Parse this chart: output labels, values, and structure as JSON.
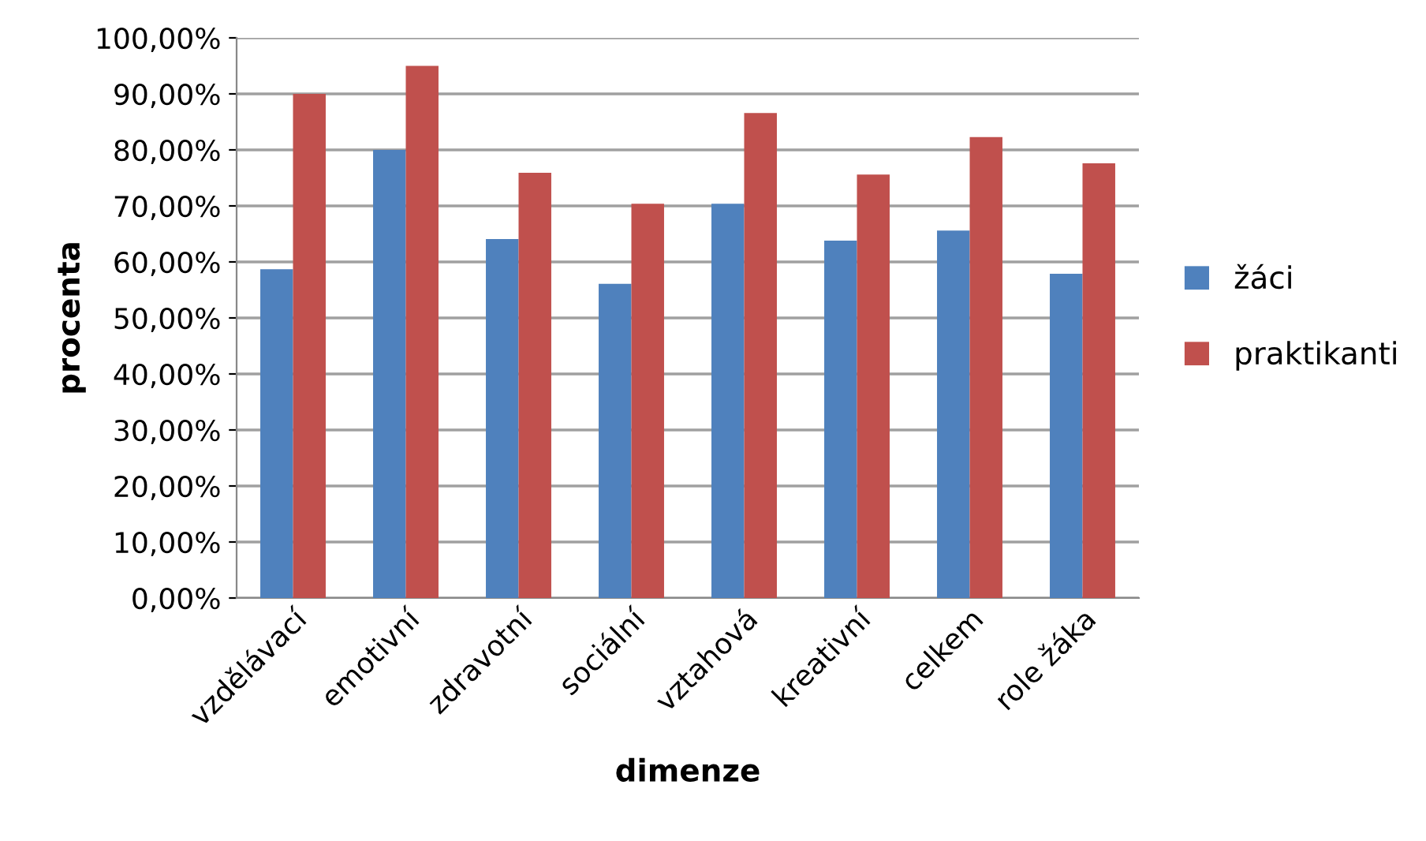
{
  "chart_data": {
    "type": "bar",
    "xlabel": "dimenze",
    "ylabel": "procenta",
    "categories": [
      "vzdělávací",
      "emotivní",
      "zdravotní",
      "sociální",
      "vztahová",
      "kreativní",
      "celkem",
      "role žáka"
    ],
    "series": [
      {
        "name": "žáci",
        "color": "#4f81bd",
        "values": [
          58.7,
          80.0,
          64.1,
          56.1,
          70.4,
          63.8,
          65.6,
          57.9
        ]
      },
      {
        "name": "praktikanti",
        "color": "#c0504d",
        "values": [
          90.0,
          95.0,
          75.9,
          70.4,
          86.6,
          75.6,
          82.3,
          77.6
        ]
      }
    ],
    "ylim": [
      0,
      100
    ],
    "yticks": [
      {
        "value": 0,
        "label": "0,00%"
      },
      {
        "value": 10,
        "label": "10,00%"
      },
      {
        "value": 20,
        "label": "20,00%"
      },
      {
        "value": 30,
        "label": "30,00%"
      },
      {
        "value": 40,
        "label": "40,00%"
      },
      {
        "value": 50,
        "label": "50,00%"
      },
      {
        "value": 60,
        "label": "60,00%"
      },
      {
        "value": 70,
        "label": "70,00%"
      },
      {
        "value": 80,
        "label": "80,00%"
      },
      {
        "value": 90,
        "label": "90,00%"
      },
      {
        "value": 100,
        "label": "100,00%"
      }
    ],
    "grid": "y",
    "legend": "right"
  }
}
